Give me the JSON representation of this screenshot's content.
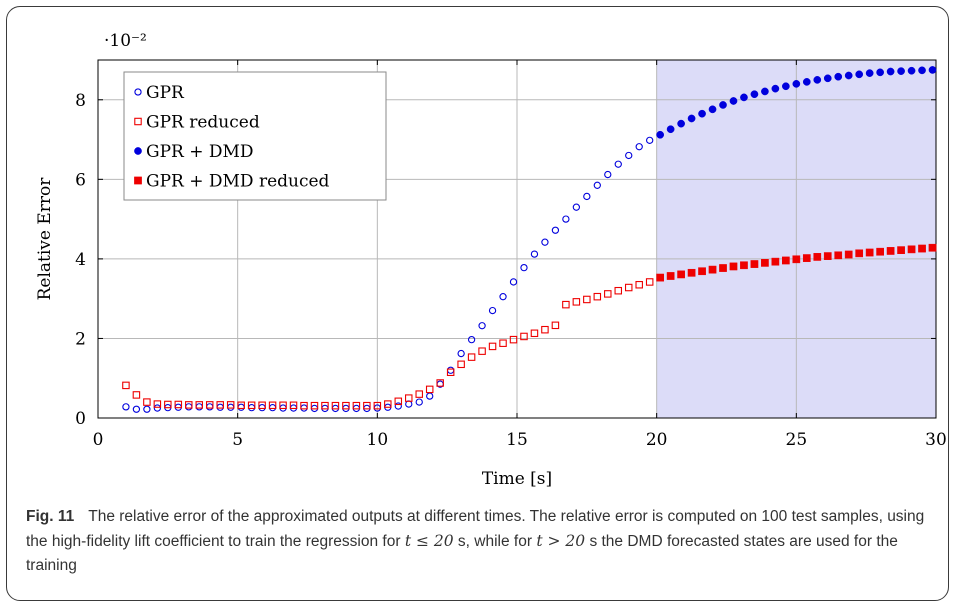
{
  "chart_data": {
    "type": "scatter",
    "xlabel": "Time [s]",
    "ylabel": "Relative Error",
    "y_multiplier_label": "·10⁻²",
    "xlim": [
      0,
      30
    ],
    "ylim": [
      0,
      9
    ],
    "xticks": [
      0,
      5,
      10,
      15,
      20,
      25,
      30
    ],
    "yticks": [
      0,
      2,
      4,
      6,
      8
    ],
    "grid": true,
    "legend_position": "top-left",
    "shaded_region": {
      "x_start": 20,
      "x_end": 30,
      "color": "#dcdcf8"
    },
    "series": [
      {
        "name": "GPR",
        "marker": "open-circle",
        "color": "#0000dd",
        "x": [
          1,
          1.375,
          1.75,
          2.125,
          2.5,
          2.875,
          3.25,
          3.625,
          4,
          4.375,
          4.75,
          5.125,
          5.5,
          5.875,
          6.25,
          6.625,
          7,
          7.375,
          7.75,
          8.125,
          8.5,
          8.875,
          9.25,
          9.625,
          10,
          10.375,
          10.75,
          11.125,
          11.5,
          11.875,
          12.25,
          12.625,
          13,
          13.375,
          13.75,
          14.125,
          14.5,
          14.875,
          15.25,
          15.625,
          16,
          16.375,
          16.75,
          17.125,
          17.5,
          17.875,
          18.25,
          18.625,
          19,
          19.375,
          19.75
        ],
        "y": [
          0.28,
          0.22,
          0.22,
          0.25,
          0.26,
          0.27,
          0.28,
          0.28,
          0.28,
          0.27,
          0.27,
          0.27,
          0.26,
          0.26,
          0.26,
          0.25,
          0.25,
          0.25,
          0.24,
          0.24,
          0.24,
          0.24,
          0.24,
          0.24,
          0.25,
          0.27,
          0.3,
          0.35,
          0.4,
          0.55,
          0.85,
          1.2,
          1.62,
          1.97,
          2.32,
          2.7,
          3.05,
          3.42,
          3.78,
          4.12,
          4.42,
          4.72,
          5.0,
          5.3,
          5.57,
          5.85,
          6.12,
          6.38,
          6.6,
          6.82,
          6.98
        ]
      },
      {
        "name": "GPR reduced",
        "marker": "open-square",
        "color": "#ee0000",
        "x": [
          1,
          1.375,
          1.75,
          2.125,
          2.5,
          2.875,
          3.25,
          3.625,
          4,
          4.375,
          4.75,
          5.125,
          5.5,
          5.875,
          6.25,
          6.625,
          7,
          7.375,
          7.75,
          8.125,
          8.5,
          8.875,
          9.25,
          9.625,
          10,
          10.375,
          10.75,
          11.125,
          11.5,
          11.875,
          12.25,
          12.625,
          13,
          13.375,
          13.75,
          14.125,
          14.5,
          14.875,
          15.25,
          15.625,
          16,
          16.375,
          16.75,
          17.125,
          17.5,
          17.875,
          18.25,
          18.625,
          19,
          19.375,
          19.75
        ],
        "y": [
          0.82,
          0.58,
          0.4,
          0.35,
          0.34,
          0.34,
          0.33,
          0.33,
          0.33,
          0.33,
          0.33,
          0.32,
          0.32,
          0.32,
          0.32,
          0.32,
          0.32,
          0.31,
          0.31,
          0.31,
          0.31,
          0.31,
          0.31,
          0.31,
          0.31,
          0.35,
          0.42,
          0.5,
          0.6,
          0.72,
          0.88,
          1.15,
          1.35,
          1.53,
          1.68,
          1.8,
          1.88,
          1.97,
          2.05,
          2.13,
          2.22,
          2.33,
          2.85,
          2.92,
          2.98,
          3.05,
          3.12,
          3.2,
          3.28,
          3.35,
          3.42
        ]
      },
      {
        "name": "GPR + DMD",
        "marker": "filled-circle",
        "color": "#0000dd",
        "x": [
          20.125,
          20.5,
          20.875,
          21.25,
          21.625,
          22,
          22.375,
          22.75,
          23.125,
          23.5,
          23.875,
          24.25,
          24.625,
          25,
          25.375,
          25.75,
          26.125,
          26.5,
          26.875,
          27.25,
          27.625,
          28,
          28.375,
          28.75,
          29.125,
          29.5,
          29.875
        ],
        "y": [
          7.12,
          7.26,
          7.4,
          7.53,
          7.65,
          7.76,
          7.87,
          7.97,
          8.06,
          8.14,
          8.21,
          8.28,
          8.34,
          8.4,
          8.45,
          8.5,
          8.54,
          8.58,
          8.61,
          8.64,
          8.67,
          8.69,
          8.71,
          8.72,
          8.73,
          8.74,
          8.75
        ]
      },
      {
        "name": "GPR + DMD reduced",
        "marker": "filled-square",
        "color": "#ee0000",
        "x": [
          20.125,
          20.5,
          20.875,
          21.25,
          21.625,
          22,
          22.375,
          22.75,
          23.125,
          23.5,
          23.875,
          24.25,
          24.625,
          25,
          25.375,
          25.75,
          26.125,
          26.5,
          26.875,
          27.25,
          27.625,
          28,
          28.375,
          28.75,
          29.125,
          29.5,
          29.875
        ],
        "y": [
          3.53,
          3.57,
          3.61,
          3.65,
          3.69,
          3.73,
          3.77,
          3.81,
          3.84,
          3.87,
          3.9,
          3.93,
          3.96,
          3.99,
          4.02,
          4.05,
          4.07,
          4.09,
          4.11,
          4.14,
          4.16,
          4.18,
          4.2,
          4.22,
          4.24,
          4.26,
          4.28
        ]
      }
    ]
  },
  "caption": {
    "label": "Fig. 11",
    "text": "The relative error of the approximated outputs at different times. The relative error is computed on 100 test samples, using the high-fidelity lift coefficient to train the regression for",
    "math_1": "t ≤ 20",
    "text_mid": "s, while for",
    "math_2": "t > 20",
    "text_end": "s the DMD forecasted states are used for the training"
  }
}
